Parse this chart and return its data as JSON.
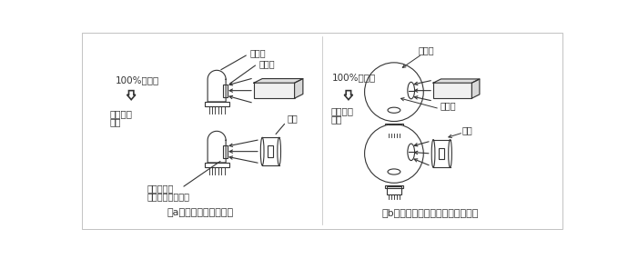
{
  "bg_color": "#ffffff",
  "border_color": "#cccccc",
  "line_color": "#333333",
  "label_a": "（a）直接受光する場合",
  "label_b": "（b）積分球を介して受光する場合",
  "text_left_100": "100%合わせ",
  "text_left_trans1": "透過率の",
  "text_left_trans2": "測定",
  "text_left_overflow1": "受光面より",
  "text_left_overflow2": "はみだした測定光",
  "text_right_100": "100%合わせ",
  "text_right_trans1": "透過率の",
  "text_right_trans2": "測定",
  "text_detector_a": "検出器",
  "text_surface_a": "受光面",
  "text_sample_a": "試料",
  "text_sphere_b": "積分球",
  "text_detector_b": "検出器",
  "text_sample_b": "試料",
  "fig_width": 6.9,
  "fig_height": 2.85,
  "dpi": 100
}
